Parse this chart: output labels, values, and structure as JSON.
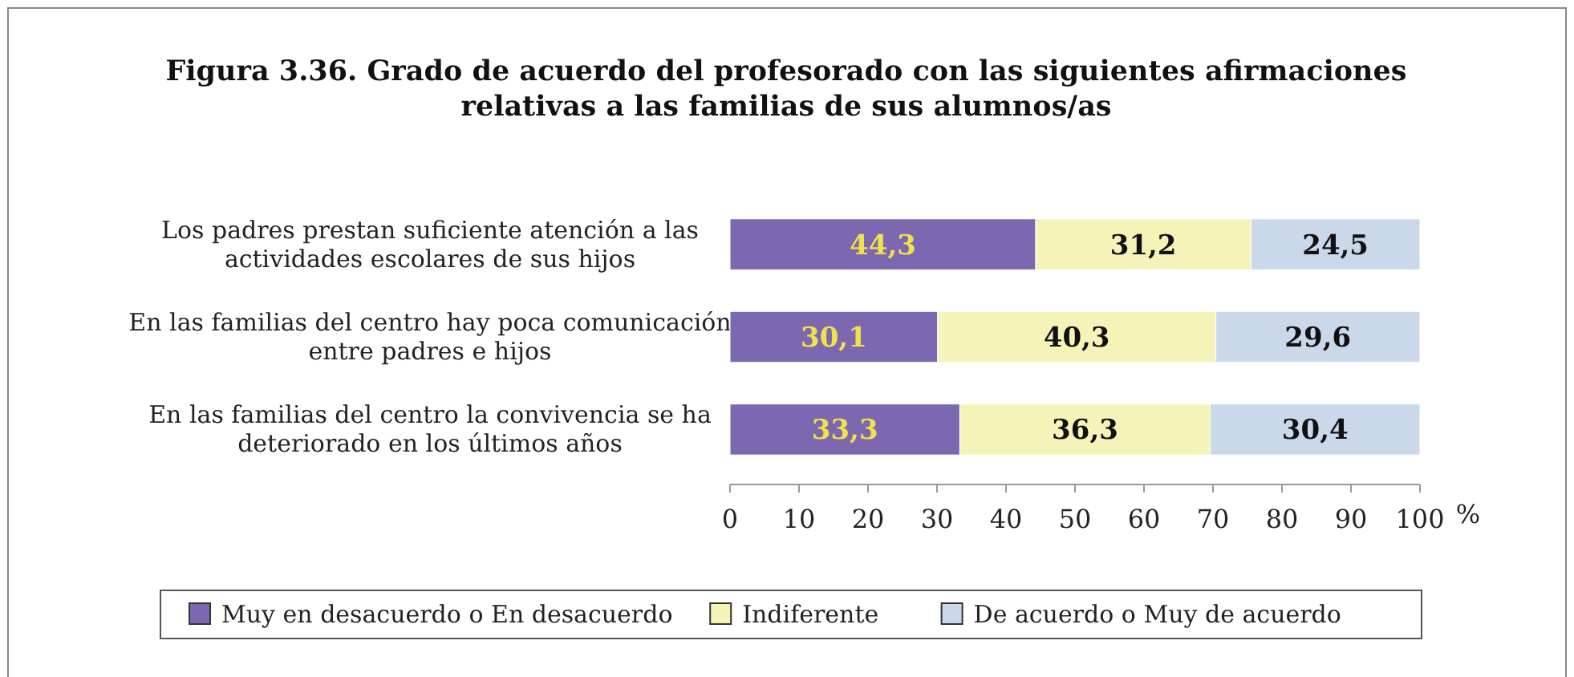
{
  "chart_data": {
    "type": "bar",
    "orientation": "horizontal",
    "stacked": true,
    "title": "Figura 3.36. Grado de acuerdo del profesorado con las siguientes afirmaciones relativas a las familias de sus alumnos/as",
    "xlabel": "%",
    "categories": [
      "Los padres prestan suficiente atención a las actividades escolares de sus hijos",
      "En las familias del centro hay poca comunicación entre padres e hijos",
      "En las familias del centro la convivencia se ha deteriorado en los últimos años"
    ],
    "series": [
      {
        "name": "Muy en desacuerdo o En desacuerdo",
        "color": "#7b68b0",
        "values": [
          44.3,
          30.1,
          33.3
        ],
        "value_labels": [
          "44,3",
          "30,1",
          "33,3"
        ]
      },
      {
        "name": "Indiferente",
        "color": "#f5f3b8",
        "values": [
          31.2,
          40.3,
          36.3
        ],
        "value_labels": [
          "31,2",
          "40,3",
          "36,3"
        ]
      },
      {
        "name": "De acuerdo o Muy de acuerdo",
        "color": "#c9d9ea",
        "values": [
          24.5,
          29.6,
          30.4
        ],
        "value_labels": [
          "24,5",
          "29,6",
          "30,4"
        ]
      }
    ],
    "xlim": [
      0,
      100
    ],
    "xticks": [
      0,
      10,
      20,
      30,
      40,
      50,
      60,
      70,
      80,
      90,
      100
    ],
    "legend": "bottom",
    "grid": false
  }
}
